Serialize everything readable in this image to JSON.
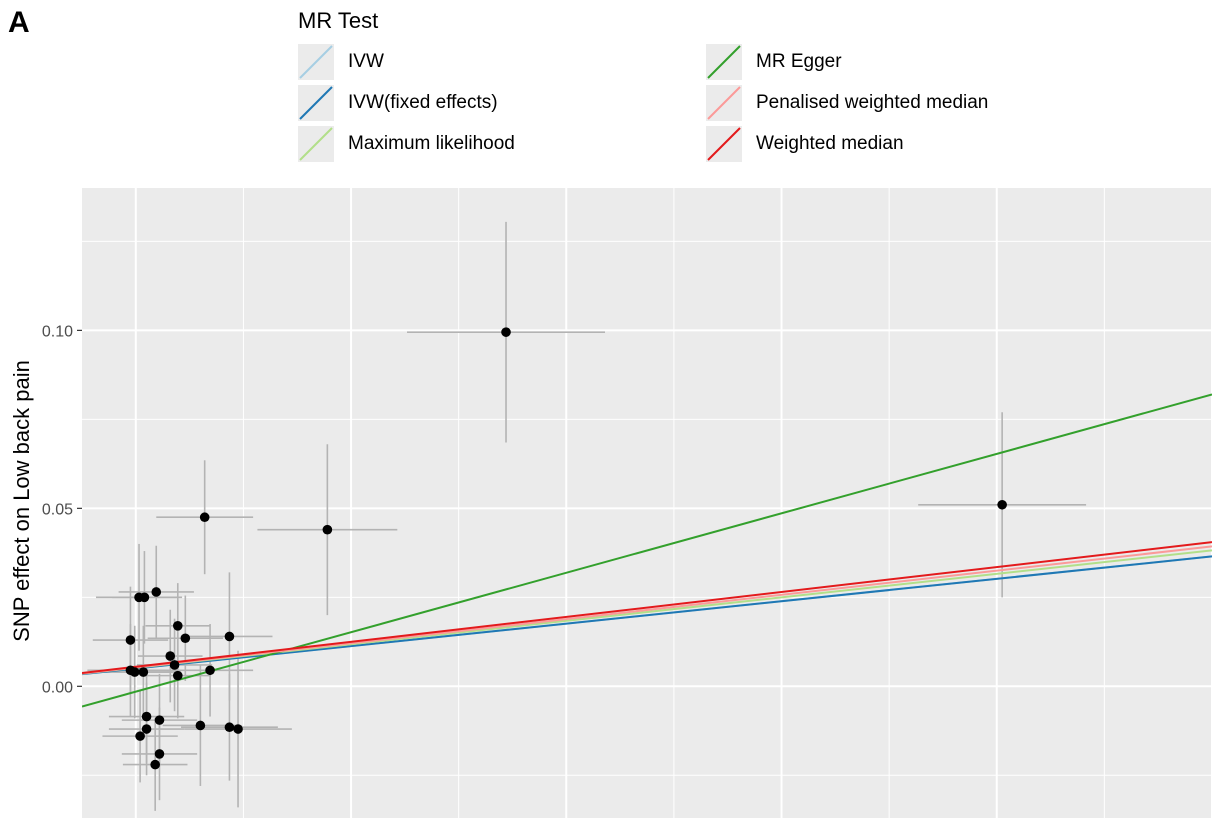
{
  "panel_label": "A",
  "legend": {
    "title": "MR Test",
    "items": [
      {
        "label": "IVW",
        "color": "#a6cee3"
      },
      {
        "label": "IVW(fixed effects)",
        "color": "#1f78b4"
      },
      {
        "label": "Maximum likelihood",
        "color": "#b2df8a"
      },
      {
        "label": "MR Egger",
        "color": "#33a02c"
      },
      {
        "label": "Penalised weighted median",
        "color": "#fb9a99"
      },
      {
        "label": "Weighted median",
        "color": "#e31a1c"
      }
    ]
  },
  "chart_data": {
    "type": "scatter",
    "title": "",
    "xlabel": "",
    "ylabel": "SNP effect on Low back pain",
    "ylim": [
      -0.037,
      0.14
    ],
    "xlim": [
      -0.05,
      1.0
    ],
    "yticks": [
      0.0,
      0.05,
      0.1
    ],
    "ytick_labels": [
      "0.00",
      "0.05",
      "0.10"
    ],
    "grid": true,
    "legend_position": "top",
    "points": [
      {
        "x": -0.005,
        "y": 0.013,
        "xerr": 0.035,
        "yerr": 0.015
      },
      {
        "x": -0.005,
        "y": 0.0045,
        "xerr": 0.04,
        "yerr": 0.013
      },
      {
        "x": -0.001,
        "y": 0.004,
        "xerr": 0.035,
        "yerr": 0.013
      },
      {
        "x": 0.003,
        "y": 0.025,
        "xerr": 0.04,
        "yerr": 0.015
      },
      {
        "x": 0.008,
        "y": 0.025,
        "xerr": 0.03,
        "yerr": 0.013
      },
      {
        "x": 0.007,
        "y": 0.004,
        "xerr": 0.035,
        "yerr": 0.013
      },
      {
        "x": 0.004,
        "y": -0.014,
        "xerr": 0.035,
        "yerr": 0.013
      },
      {
        "x": 0.01,
        "y": -0.0085,
        "xerr": 0.035,
        "yerr": 0.013
      },
      {
        "x": 0.01,
        "y": -0.012,
        "xerr": 0.035,
        "yerr": 0.013
      },
      {
        "x": 0.019,
        "y": 0.0265,
        "xerr": 0.035,
        "yerr": 0.013
      },
      {
        "x": 0.022,
        "y": -0.0095,
        "xerr": 0.035,
        "yerr": 0.013
      },
      {
        "x": 0.018,
        "y": -0.022,
        "xerr": 0.03,
        "yerr": 0.013
      },
      {
        "x": 0.022,
        "y": -0.019,
        "xerr": 0.035,
        "yerr": 0.013
      },
      {
        "x": 0.032,
        "y": 0.0085,
        "xerr": 0.03,
        "yerr": 0.013
      },
      {
        "x": 0.036,
        "y": 0.006,
        "xerr": 0.035,
        "yerr": 0.013
      },
      {
        "x": 0.039,
        "y": 0.017,
        "xerr": 0.03,
        "yerr": 0.012
      },
      {
        "x": 0.039,
        "y": 0.003,
        "xerr": 0.03,
        "yerr": 0.012
      },
      {
        "x": 0.046,
        "y": 0.0135,
        "xerr": 0.035,
        "yerr": 0.012
      },
      {
        "x": 0.06,
        "y": -0.011,
        "xerr": 0.035,
        "yerr": 0.017
      },
      {
        "x": 0.064,
        "y": 0.0475,
        "xerr": 0.045,
        "yerr": 0.016
      },
      {
        "x": 0.069,
        "y": 0.0045,
        "xerr": 0.04,
        "yerr": 0.013
      },
      {
        "x": 0.087,
        "y": 0.014,
        "xerr": 0.04,
        "yerr": 0.018
      },
      {
        "x": 0.087,
        "y": -0.0115,
        "xerr": 0.045,
        "yerr": 0.015
      },
      {
        "x": 0.095,
        "y": -0.012,
        "xerr": 0.05,
        "yerr": 0.022
      },
      {
        "x": 0.178,
        "y": 0.044,
        "xerr": 0.065,
        "yerr": 0.024
      },
      {
        "x": 0.344,
        "y": 0.0995,
        "xerr": 0.092,
        "yerr": 0.031
      },
      {
        "x": 0.805,
        "y": 0.051,
        "xerr": 0.078,
        "yerr": 0.026
      }
    ],
    "series": [
      {
        "name": "IVW",
        "intercept": 0.005,
        "slope": 0.0315
      },
      {
        "name": "IVW(fixed effects)",
        "intercept": 0.005,
        "slope": 0.0315
      },
      {
        "name": "Maximum likelihood",
        "intercept": 0.0052,
        "slope": 0.033
      },
      {
        "name": "MR Egger",
        "intercept": -0.0015,
        "slope": 0.0835
      },
      {
        "name": "Penalised weighted median",
        "intercept": 0.0053,
        "slope": 0.034
      },
      {
        "name": "Weighted median",
        "intercept": 0.0055,
        "slope": 0.035
      }
    ]
  }
}
